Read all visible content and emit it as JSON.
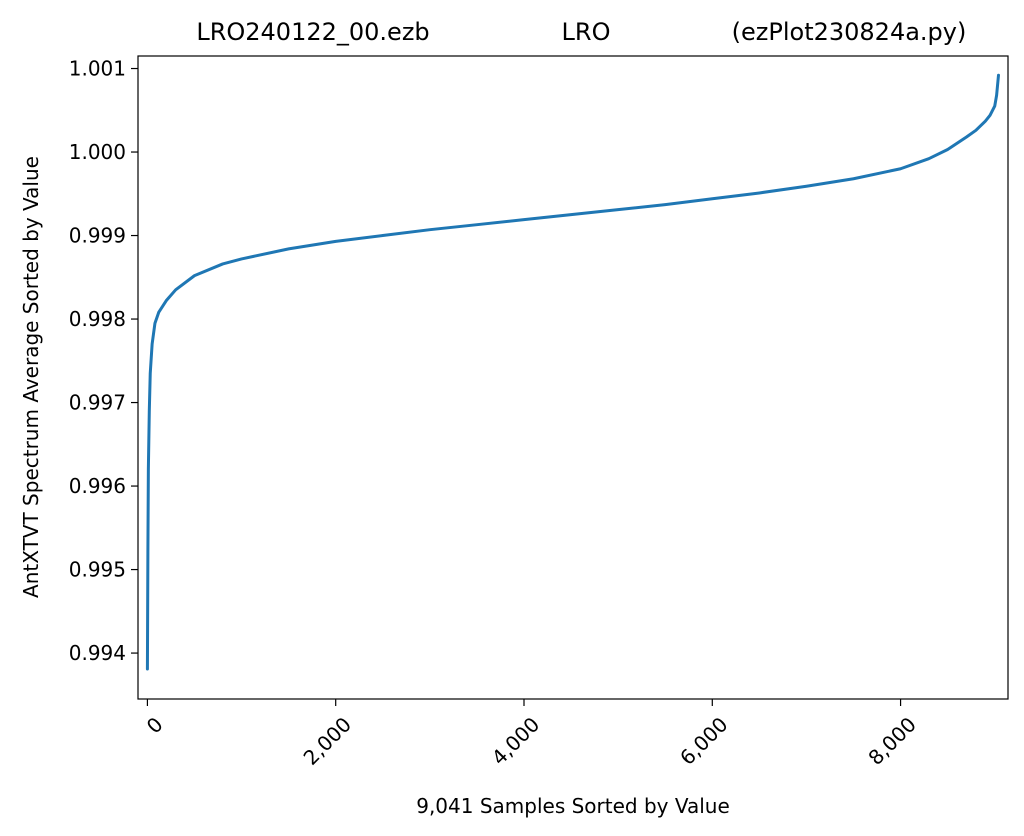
{
  "chart_data": {
    "type": "line",
    "title_parts": [
      "LRO240122_00.ezb",
      "LRO",
      "(ezPlot230824a.py)"
    ],
    "xlabel": "9,041 Samples Sorted by Value",
    "ylabel": "AntXTVT Spectrum Average Sorted by Value",
    "xlim": [
      -100,
      9141
    ],
    "ylim": [
      0.99345,
      1.00115
    ],
    "xticks": [
      0,
      2000,
      4000,
      6000,
      8000
    ],
    "xtick_labels": [
      "0",
      "2,000",
      "4,000",
      "6,000",
      "8,000"
    ],
    "yticks": [
      0.994,
      0.995,
      0.996,
      0.997,
      0.998,
      0.999,
      1.0,
      1.001
    ],
    "ytick_labels": [
      "0.994",
      "0.995",
      "0.996",
      "0.997",
      "0.998",
      "0.999",
      "1.000",
      "1.001"
    ],
    "grid": false,
    "series_color": "#1f77b4",
    "series": [
      {
        "x": [
          0,
          5,
          10,
          20,
          30,
          50,
          80,
          120,
          200,
          300,
          500,
          800,
          1000,
          1500,
          2000,
          2500,
          3000,
          3500,
          4000,
          4500,
          5000,
          5500,
          6000,
          6500,
          7000,
          7500,
          8000,
          8300,
          8500,
          8700,
          8800,
          8900,
          8950,
          9000,
          9020,
          9040
        ],
        "y": [
          0.99381,
          0.9952,
          0.9962,
          0.9969,
          0.99735,
          0.9977,
          0.99795,
          0.99808,
          0.99822,
          0.99835,
          0.99852,
          0.99866,
          0.99872,
          0.99884,
          0.99893,
          0.999,
          0.99907,
          0.99913,
          0.99919,
          0.99925,
          0.99931,
          0.99937,
          0.99944,
          0.99951,
          0.99959,
          0.99968,
          0.9998,
          0.99992,
          1.00003,
          1.00018,
          1.00026,
          1.00037,
          1.00044,
          1.00055,
          1.00068,
          1.00092
        ]
      }
    ]
  }
}
